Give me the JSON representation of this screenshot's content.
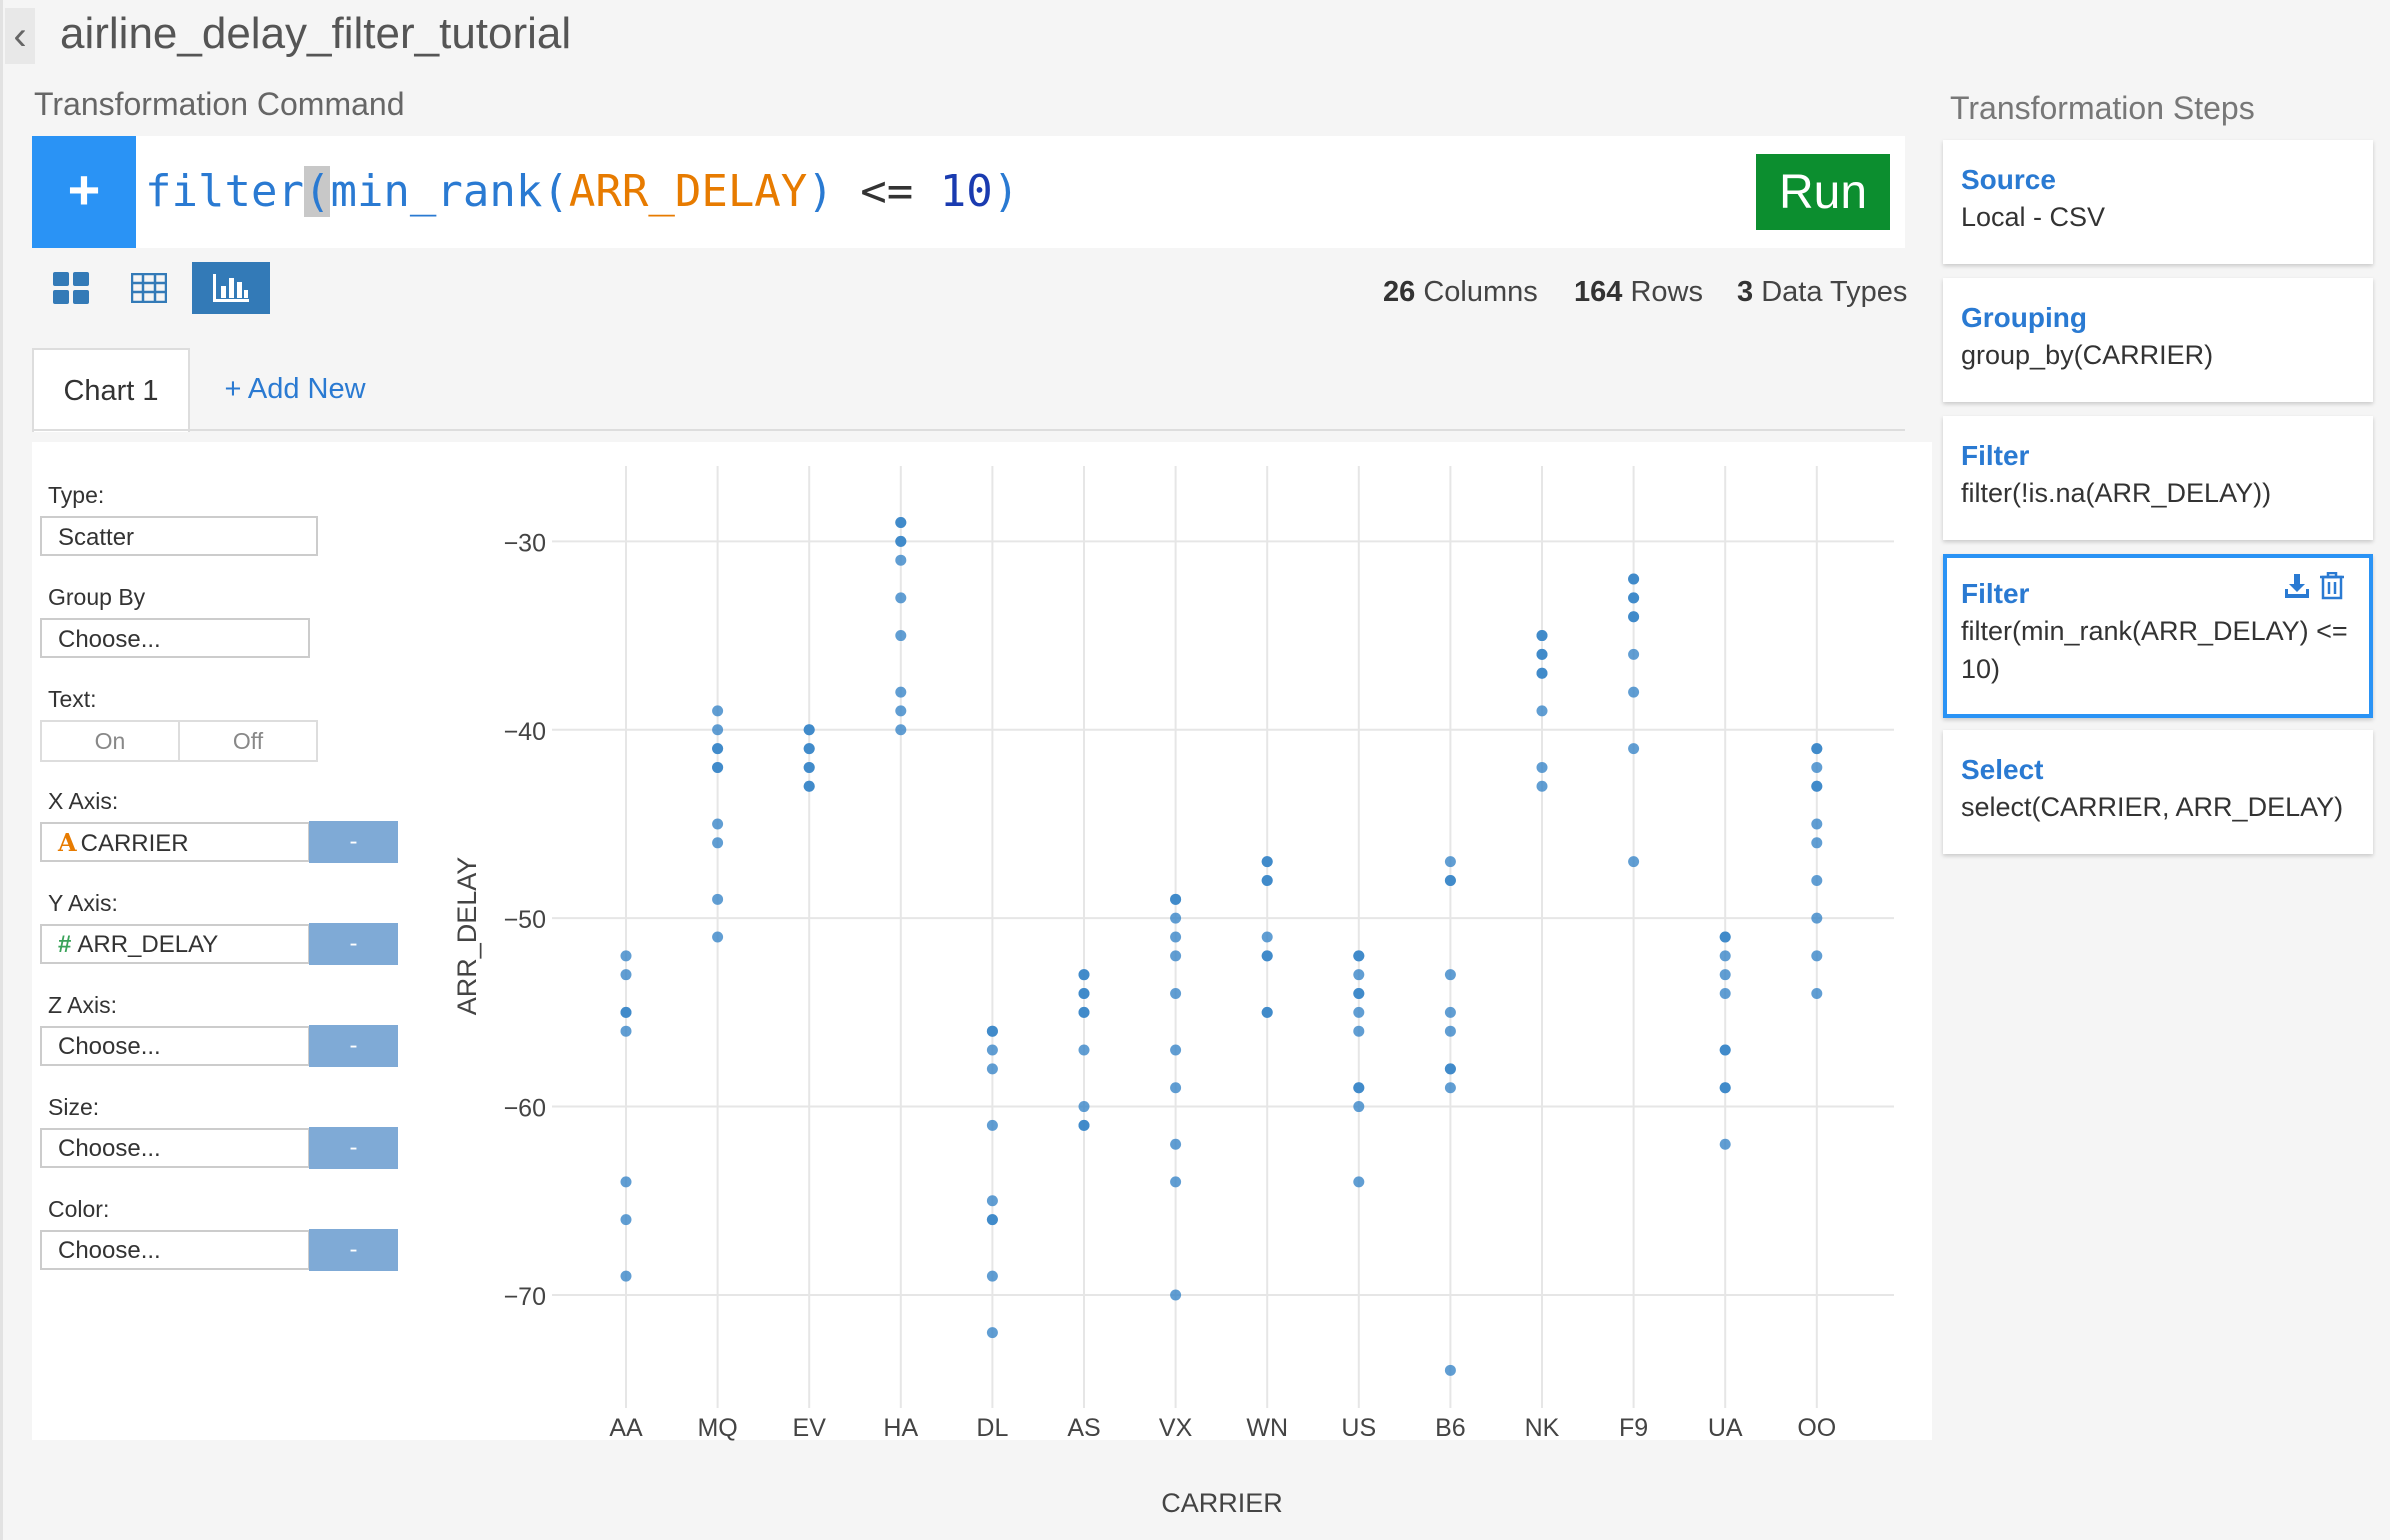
{
  "app": {
    "title": "airline_delay_filter_tutorial",
    "back_icon": "chevron-left-icon"
  },
  "command": {
    "section_label": "Transformation Command",
    "tokens": {
      "fn": "filter",
      "open1": "(",
      "inner_fn": "min_rank",
      "open2": "(",
      "column": "ARR_DELAY",
      "close2": ")",
      "op": " <= ",
      "number": "10",
      "close1": ")"
    },
    "run_label": "Run",
    "plus_label": "+"
  },
  "view_icons": [
    "grid-view-icon",
    "table-view-icon",
    "chart-view-icon"
  ],
  "stats": {
    "columns_count": "26",
    "columns_label": "Columns",
    "rows_count": "164",
    "rows_label": "Rows",
    "types_count": "3",
    "types_label": "Data Types"
  },
  "tabs": {
    "active": "Chart 1",
    "add": "+ Add New"
  },
  "controls": {
    "type_label": "Type:",
    "type_value": "Scatter",
    "group_label": "Group By",
    "group_value": "Choose...",
    "text_label": "Text:",
    "text_on": "On",
    "text_off": "Off",
    "x_label": "X Axis:",
    "x_glyph": "A",
    "x_value": "CARRIER",
    "y_label": "Y Axis:",
    "y_glyph": "#",
    "y_value": "ARR_DELAY",
    "z_label": "Z Axis:",
    "z_value": "Choose...",
    "size_label": "Size:",
    "size_value": "Choose...",
    "color_label": "Color:",
    "color_value": "Choose...",
    "minus": "-"
  },
  "steps": {
    "title": "Transformation Steps",
    "items": [
      {
        "title": "Source",
        "desc": "Local - CSV"
      },
      {
        "title": "Grouping",
        "desc": "group_by(CARRIER)"
      },
      {
        "title": "Filter",
        "desc": "filter(!is.na(ARR_DELAY))"
      },
      {
        "title": "Filter",
        "desc": "filter(min_rank(ARR_DELAY) <=",
        "desc2": "10)"
      },
      {
        "title": "Select",
        "desc": "select(CARRIER, ARR_DELAY)"
      }
    ]
  },
  "colors": {
    "accent": "#2a93f5",
    "run": "#0c8e2f",
    "point": "#3a86c8"
  },
  "chart_data": {
    "type": "scatter",
    "xlabel": "CARRIER",
    "ylabel": "ARR_DELAY",
    "categories": [
      "AA",
      "MQ",
      "EV",
      "HA",
      "DL",
      "AS",
      "VX",
      "WN",
      "US",
      "B6",
      "NK",
      "F9",
      "UA",
      "OO"
    ],
    "ylim": [
      -76,
      -26
    ],
    "yticks": [
      -30,
      -40,
      -50,
      -60,
      -70
    ],
    "grid": true,
    "points": {
      "AA": [
        -52,
        -53,
        -55,
        -55,
        -56,
        -64,
        -66,
        -69
      ],
      "MQ": [
        -39,
        -40,
        -41,
        -41,
        -42,
        -42,
        -45,
        -46,
        -49,
        -51
      ],
      "EV": [
        -40,
        -40,
        -41,
        -41,
        -42,
        -42,
        -43,
        -43
      ],
      "HA": [
        -29,
        -29,
        -30,
        -30,
        -31,
        -33,
        -35,
        -38,
        -39,
        -40
      ],
      "DL": [
        -56,
        -56,
        -57,
        -58,
        -61,
        -65,
        -66,
        -66,
        -69,
        -72
      ],
      "AS": [
        -53,
        -53,
        -54,
        -54,
        -55,
        -55,
        -57,
        -60,
        -61,
        -61
      ],
      "VX": [
        -49,
        -49,
        -50,
        -51,
        -52,
        -54,
        -57,
        -59,
        -62,
        -64,
        -70
      ],
      "WN": [
        -47,
        -47,
        -48,
        -48,
        -51,
        -52,
        -52,
        -55,
        -55
      ],
      "US": [
        -52,
        -52,
        -53,
        -54,
        -54,
        -55,
        -56,
        -59,
        -59,
        -60,
        -64
      ],
      "B6": [
        -47,
        -48,
        -48,
        -53,
        -55,
        -56,
        -58,
        -58,
        -59,
        -74
      ],
      "NK": [
        -35,
        -35,
        -36,
        -36,
        -37,
        -37,
        -39,
        -42,
        -43
      ],
      "F9": [
        -32,
        -32,
        -33,
        -33,
        -34,
        -34,
        -36,
        -38,
        -41,
        -47
      ],
      "UA": [
        -51,
        -51,
        -52,
        -53,
        -54,
        -57,
        -57,
        -59,
        -59,
        -62
      ],
      "OO": [
        -41,
        -41,
        -42,
        -43,
        -43,
        -45,
        -46,
        -48,
        -50,
        -52,
        -54
      ]
    }
  }
}
